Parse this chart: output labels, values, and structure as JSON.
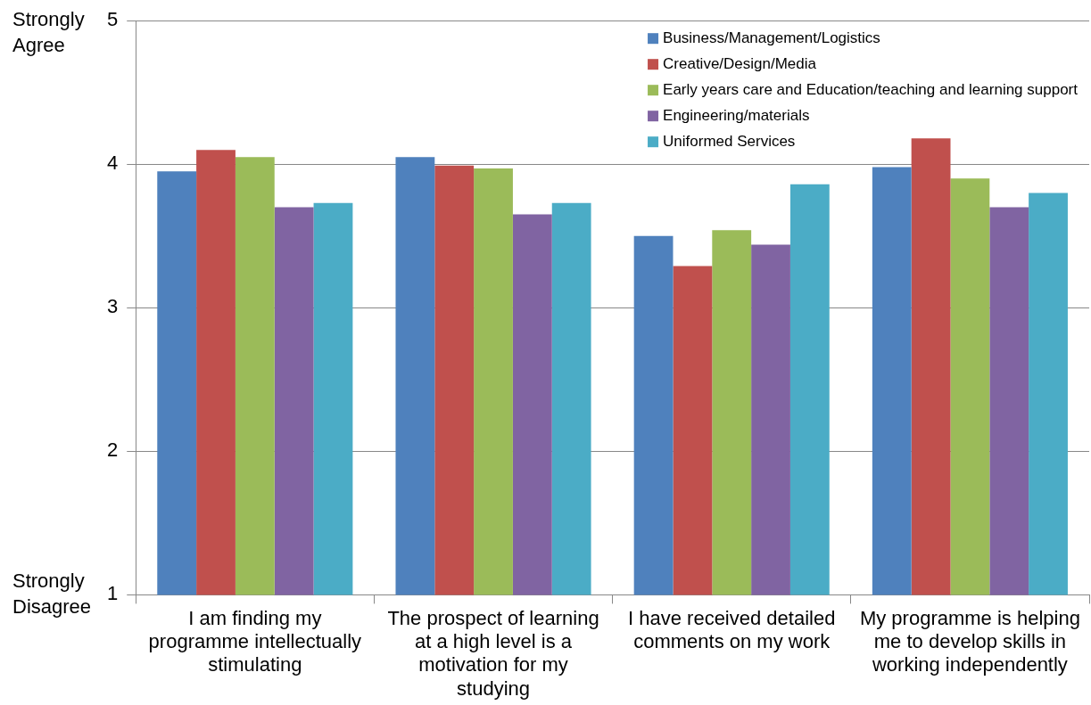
{
  "chart_data": {
    "type": "bar",
    "categories": [
      "I am finding my programme intellectually stimulating",
      "The prospect of learning at a high level is a motivation for my studying",
      "I have received detailed comments on my work",
      "My programme is helping me to develop skills in working independently"
    ],
    "series": [
      {
        "name": "Business/Management/Logistics",
        "color": "#4f81bd",
        "values": [
          3.95,
          4.05,
          3.5,
          3.98
        ]
      },
      {
        "name": "Creative/Design/Media",
        "color": "#c0504d",
        "values": [
          4.1,
          3.99,
          3.29,
          4.18
        ]
      },
      {
        "name": "Early years care and Education/teaching and learning support",
        "color": "#9bbb59",
        "values": [
          4.05,
          3.97,
          3.54,
          3.9
        ]
      },
      {
        "name": "Engineering/materials",
        "color": "#8064a2",
        "values": [
          3.7,
          3.65,
          3.44,
          3.7
        ]
      },
      {
        "name": "Uniformed Services",
        "color": "#4bacc6",
        "values": [
          3.73,
          3.73,
          3.86,
          3.8
        ]
      }
    ],
    "ylim": [
      1,
      5
    ],
    "yticks": [
      1,
      2,
      3,
      4,
      5
    ],
    "grid": "y",
    "legend": "top right",
    "annotations": [
      "Strongly Agree",
      "Strongly Disagree"
    ]
  }
}
